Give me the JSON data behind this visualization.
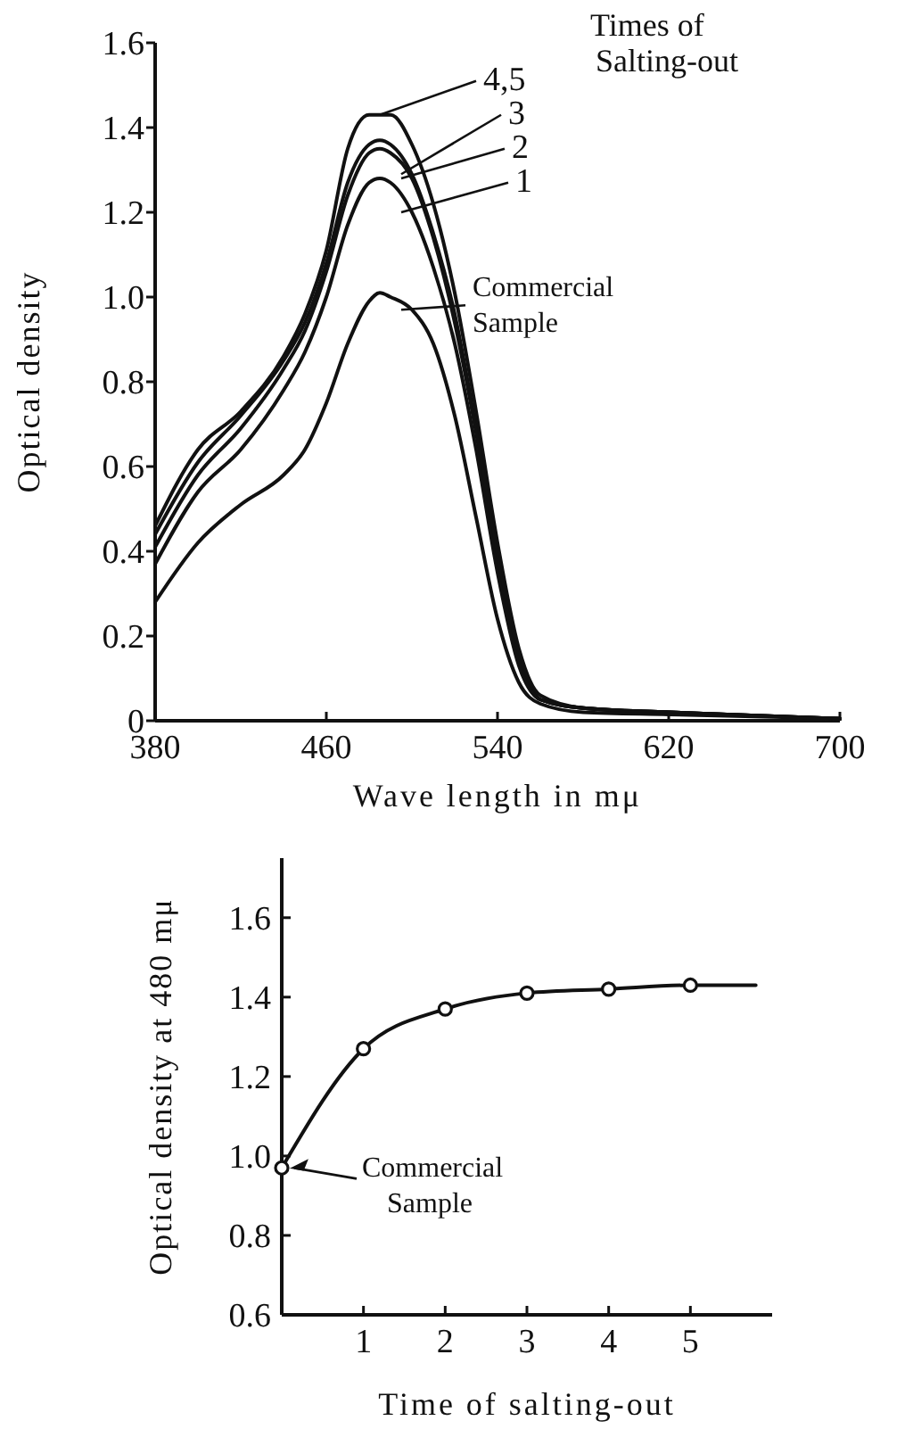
{
  "chart_data": [
    {
      "type": "line",
      "xlabel": "Wave length in mμ",
      "ylabel": "Optical density",
      "legend_title": "Times of Salting-out",
      "legend": "top right",
      "xlim": [
        380,
        700
      ],
      "ylim": [
        0,
        1.6
      ],
      "xticks": [
        380,
        460,
        540,
        620,
        700
      ],
      "yticks": [
        0,
        0.2,
        0.4,
        0.6,
        0.8,
        {
          "value": 1,
          "label": "1.0"
        },
        1.2,
        1.4,
        1.6
      ],
      "marker": "none",
      "x": [
        380,
        400,
        420,
        440,
        450,
        460,
        470,
        480,
        485,
        490,
        500,
        510,
        520,
        530,
        540,
        550,
        560,
        580,
        620,
        700
      ],
      "series": [
        {
          "name": "4,5",
          "color": "#111111",
          "values": [
            0.46,
            0.64,
            0.73,
            0.86,
            0.96,
            1.11,
            1.35,
            1.43,
            1.43,
            1.43,
            1.36,
            1.22,
            1.01,
            0.73,
            0.42,
            0.17,
            0.06,
            0.03,
            0.02,
            0.005
          ]
        },
        {
          "name": "3",
          "color": "#111111",
          "values": [
            0.44,
            0.61,
            0.72,
            0.85,
            0.94,
            1.08,
            1.27,
            1.36,
            1.37,
            1.36,
            1.29,
            1.15,
            0.96,
            0.69,
            0.4,
            0.16,
            0.05,
            0.03,
            0.02,
            0.005
          ]
        },
        {
          "name": "2",
          "color": "#111111",
          "values": [
            0.41,
            0.58,
            0.69,
            0.83,
            0.92,
            1.06,
            1.24,
            1.34,
            1.35,
            1.34,
            1.28,
            1.14,
            0.94,
            0.68,
            0.38,
            0.14,
            0.05,
            0.03,
            0.02,
            0.005
          ]
        },
        {
          "name": "1",
          "color": "#111111",
          "values": [
            0.37,
            0.54,
            0.64,
            0.78,
            0.87,
            1.0,
            1.17,
            1.27,
            1.28,
            1.27,
            1.2,
            1.07,
            0.89,
            0.64,
            0.35,
            0.13,
            0.05,
            0.03,
            0.02,
            0.005
          ]
        },
        {
          "name": "Commercial Sample",
          "color": "#111111",
          "values": [
            0.28,
            0.42,
            0.51,
            0.58,
            0.64,
            0.75,
            0.89,
            0.99,
            1.01,
            1.0,
            0.97,
            0.89,
            0.72,
            0.48,
            0.24,
            0.09,
            0.04,
            0.02,
            0.015,
            0.005
          ]
        }
      ]
    },
    {
      "type": "line",
      "xlabel": "Time of salting-out",
      "ylabel": "Optical density at 480 mμ",
      "xlim": [
        0,
        6
      ],
      "ylim": [
        0.6,
        1.75
      ],
      "xticks": [
        1,
        2,
        3,
        4,
        5
      ],
      "yticks": [
        0.6,
        0.8,
        {
          "value": 1,
          "label": "1.0"
        },
        1.2,
        1.4,
        1.6
      ],
      "annotations": [
        {
          "text": "Commercial Sample",
          "x": 0,
          "y": 0.97
        }
      ],
      "series": [
        {
          "color": "#111111",
          "marker": "none",
          "x": [
            0,
            1,
            2,
            3,
            4,
            5,
            5.8
          ],
          "values": [
            0.97,
            1.27,
            1.37,
            1.41,
            1.42,
            1.43,
            1.43
          ]
        },
        {
          "type": "scatter",
          "color": "#111111",
          "marker": "circle",
          "x": [
            0,
            1,
            2,
            3,
            4,
            5
          ],
          "values": [
            0.97,
            1.27,
            1.37,
            1.41,
            1.42,
            1.43
          ]
        }
      ]
    }
  ]
}
